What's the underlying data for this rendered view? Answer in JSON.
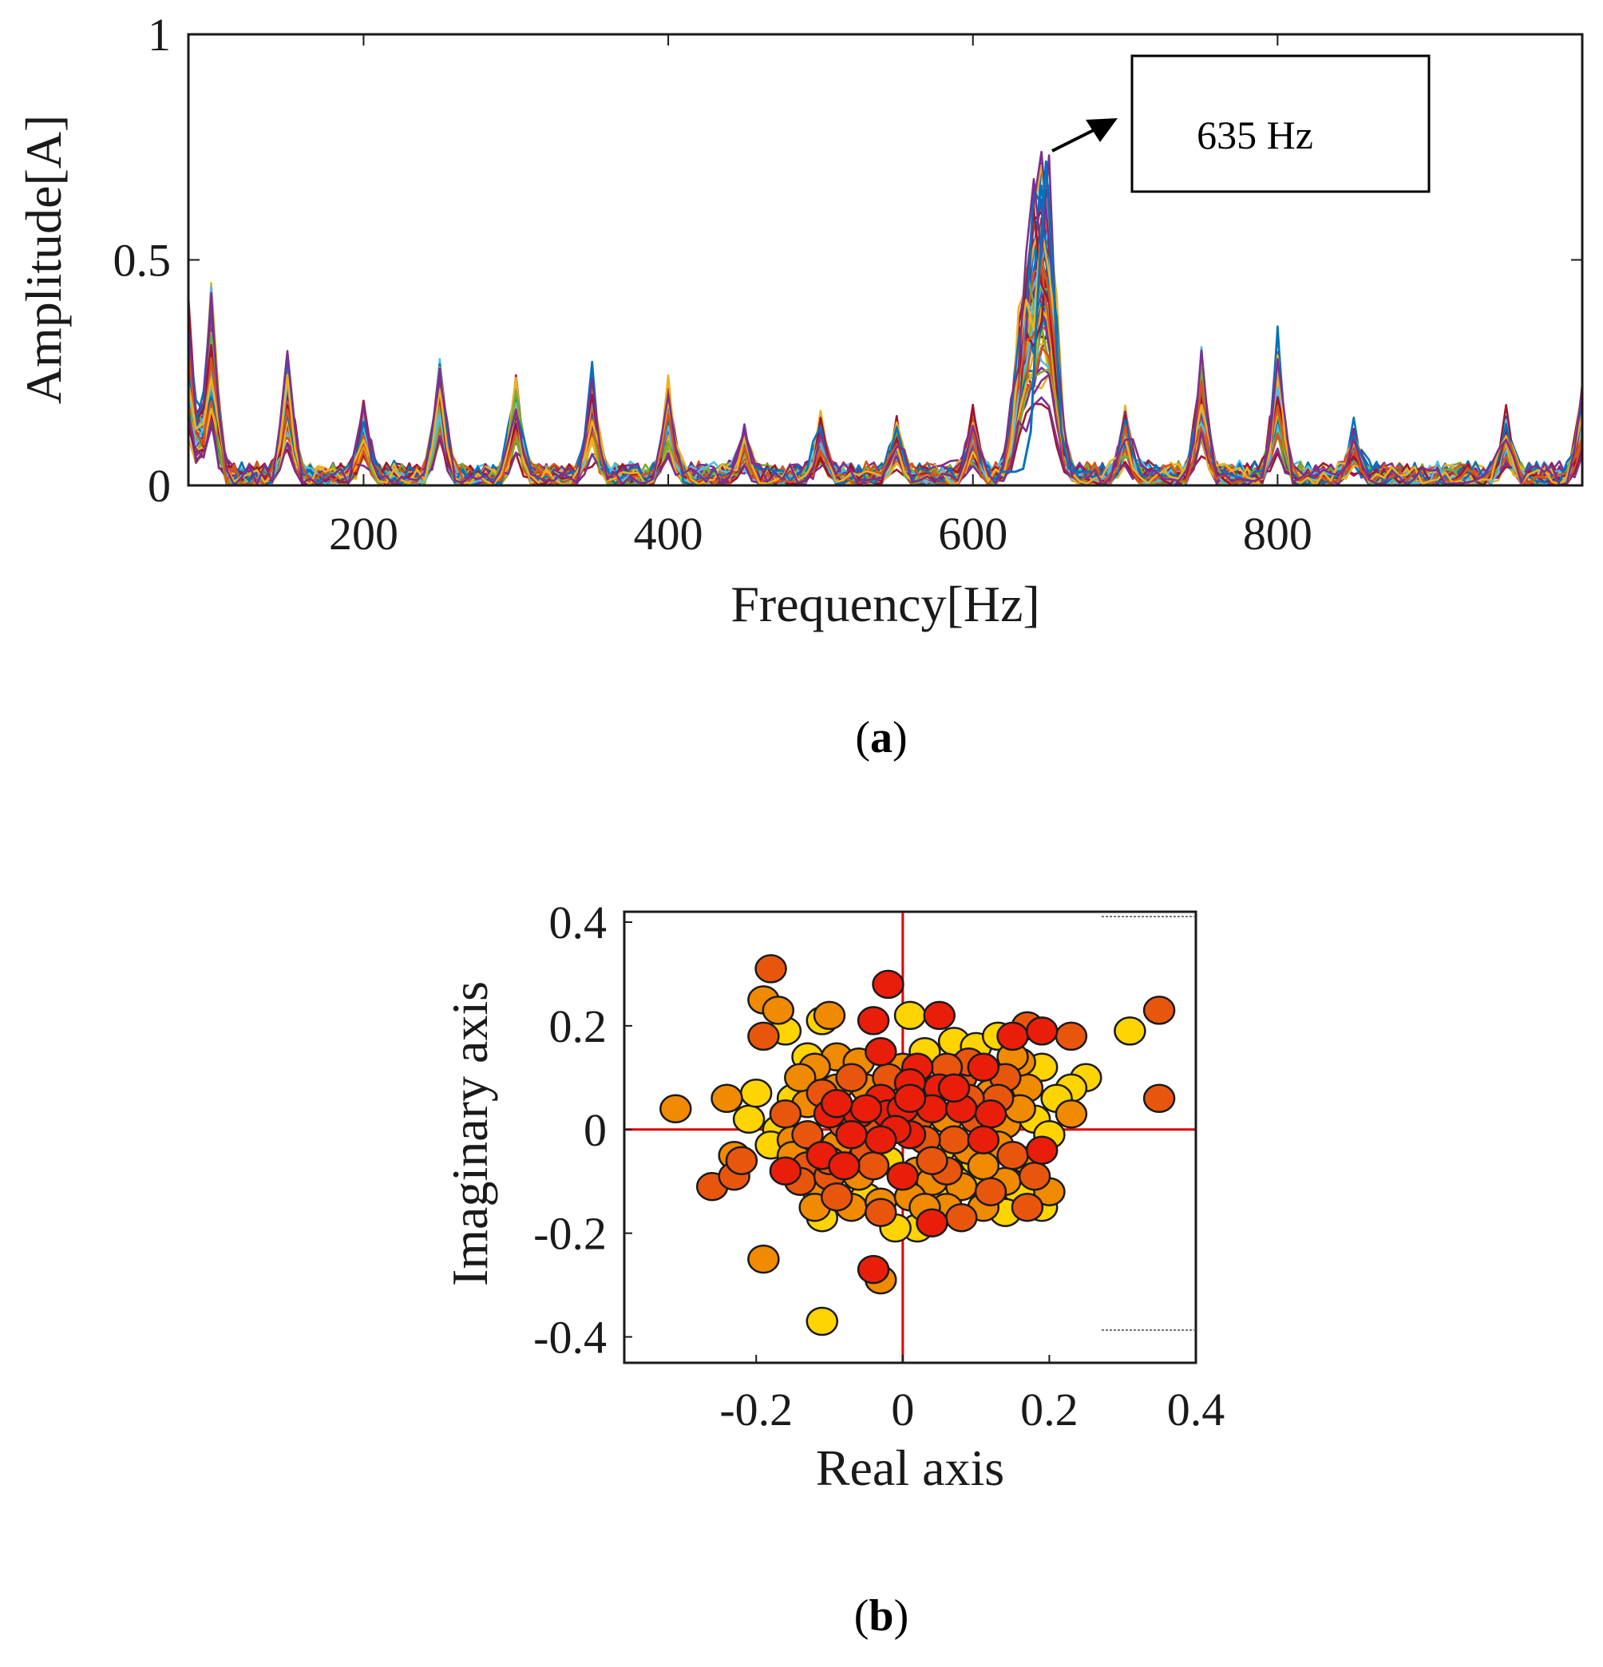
{
  "chart_data": [
    {
      "id": "a",
      "type": "line",
      "panel_label_open": "(",
      "panel_label": "a",
      "panel_label_close": ")",
      "title": "",
      "xlabel": "Frequency[Hz]",
      "ylabel": "Amplitude[A]",
      "xlim": [
        85,
        1000
      ],
      "ylim": [
        0,
        1
      ],
      "xticks": [
        200,
        400,
        600,
        800
      ],
      "yticks": [
        0,
        0.5,
        1
      ],
      "ytick_labels": [
        "0",
        "0.5",
        "1"
      ],
      "grid": false,
      "annotation": {
        "text": "635 Hz",
        "points_to": [
          648,
          0.72
        ]
      },
      "series_count_approx": 60,
      "baseline_noise": 0.04,
      "peaks": [
        {
          "x": 85,
          "amplitude": 0.45
        },
        {
          "x": 100,
          "amplitude": 0.51
        },
        {
          "x": 150,
          "amplitude": 0.31
        },
        {
          "x": 200,
          "amplitude": 0.18
        },
        {
          "x": 250,
          "amplitude": 0.31
        },
        {
          "x": 300,
          "amplitude": 0.26
        },
        {
          "x": 350,
          "amplitude": 0.25
        },
        {
          "x": 400,
          "amplitude": 0.21
        },
        {
          "x": 450,
          "amplitude": 0.11
        },
        {
          "x": 500,
          "amplitude": 0.14
        },
        {
          "x": 550,
          "amplitude": 0.14
        },
        {
          "x": 600,
          "amplitude": 0.16
        },
        {
          "x": 635,
          "amplitude": 0.5
        },
        {
          "x": 648,
          "amplitude": 0.72
        },
        {
          "x": 700,
          "amplitude": 0.15
        },
        {
          "x": 750,
          "amplitude": 0.31
        },
        {
          "x": 800,
          "amplitude": 0.34
        },
        {
          "x": 850,
          "amplitude": 0.11
        },
        {
          "x": 950,
          "amplitude": 0.15
        },
        {
          "x": 1000,
          "amplitude": 0.24
        }
      ],
      "colors": [
        "#0072BD",
        "#D95319",
        "#EDB120",
        "#7E2F8E",
        "#77AC30",
        "#4DBEEE",
        "#A2142F"
      ]
    },
    {
      "id": "b",
      "type": "scatter",
      "panel_label_open": "(",
      "panel_label": "b",
      "panel_label_close": ")",
      "title": "",
      "xlabel": "Real axis",
      "ylabel": "Imaginary axis",
      "xlim": [
        -0.38,
        0.4
      ],
      "ylim": [
        -0.45,
        0.42
      ],
      "xticks": [
        -0.2,
        0,
        0.2,
        0.4
      ],
      "xtick_labels": [
        "-0.2",
        "0",
        "0.2",
        "0.4"
      ],
      "yticks": [
        0.4,
        0.2,
        0,
        -0.2,
        -0.4
      ],
      "ytick_labels": [
        "0.4",
        "0.2",
        "0",
        "-0.2",
        "-0.4"
      ],
      "grid": false,
      "reference_lines": {
        "x": 0,
        "y": 0,
        "color": "#e00000"
      },
      "colors": {
        "yellow": "#FFD400",
        "orange": "#F08A00",
        "dark_orange": "#E8560E",
        "red": "#E81E0A"
      },
      "points": [
        [
          -0.31,
          0.04,
          "orange"
        ],
        [
          -0.24,
          0.06,
          "orange"
        ],
        [
          -0.26,
          -0.11,
          "dark_orange"
        ],
        [
          -0.23,
          -0.09,
          "dark_orange"
        ],
        [
          -0.22,
          -0.06,
          "dark_orange"
        ],
        [
          -0.23,
          -0.05,
          "orange"
        ],
        [
          -0.21,
          0.02,
          "yellow"
        ],
        [
          -0.2,
          0.07,
          "yellow"
        ],
        [
          -0.18,
          0.31,
          "dark_orange"
        ],
        [
          -0.19,
          0.25,
          "orange"
        ],
        [
          -0.17,
          0.23,
          "orange"
        ],
        [
          -0.19,
          0.18,
          "dark_orange"
        ],
        [
          -0.16,
          0.19,
          "yellow"
        ],
        [
          -0.11,
          0.21,
          "yellow"
        ],
        [
          -0.1,
          0.22,
          "orange"
        ],
        [
          -0.04,
          0.21,
          "red"
        ],
        [
          -0.02,
          0.28,
          "red"
        ],
        [
          0.01,
          0.22,
          "yellow"
        ],
        [
          0.05,
          0.22,
          "red"
        ],
        [
          -0.13,
          0.14,
          "yellow"
        ],
        [
          -0.09,
          0.14,
          "orange"
        ],
        [
          -0.06,
          0.13,
          "orange"
        ],
        [
          -0.03,
          0.15,
          "red"
        ],
        [
          0,
          0.12,
          "orange"
        ],
        [
          0.02,
          0.12,
          "red"
        ],
        [
          0.07,
          0.17,
          "yellow"
        ],
        [
          0.1,
          0.16,
          "yellow"
        ],
        [
          0.13,
          0.18,
          "yellow"
        ],
        [
          0.15,
          0.18,
          "red"
        ],
        [
          0.17,
          0.2,
          "dark_orange"
        ],
        [
          0.19,
          0.19,
          "red"
        ],
        [
          0.23,
          0.18,
          "dark_orange"
        ],
        [
          0.31,
          0.19,
          "yellow"
        ],
        [
          0.35,
          0.23,
          "dark_orange"
        ],
        [
          0.35,
          0.06,
          "dark_orange"
        ],
        [
          0.25,
          0.1,
          "yellow"
        ],
        [
          0.23,
          0.08,
          "yellow"
        ],
        [
          0.21,
          0.06,
          "yellow"
        ],
        [
          0.23,
          0.03,
          "orange"
        ],
        [
          0.17,
          0.08,
          "orange"
        ],
        [
          0.14,
          0.1,
          "dark_orange"
        ],
        [
          0.11,
          0.12,
          "red"
        ],
        [
          0.08,
          0.1,
          "dark_orange"
        ],
        [
          0.05,
          0.08,
          "red"
        ],
        [
          0.03,
          0.06,
          "dark_orange"
        ],
        [
          0.01,
          0.09,
          "red"
        ],
        [
          -0.01,
          0.07,
          "dark_orange"
        ],
        [
          -0.03,
          0.06,
          "red"
        ],
        [
          -0.05,
          0.08,
          "orange"
        ],
        [
          -0.07,
          0.1,
          "dark_orange"
        ],
        [
          -0.09,
          0.08,
          "orange"
        ],
        [
          -0.11,
          0.07,
          "dark_orange"
        ],
        [
          -0.13,
          0.05,
          "orange"
        ],
        [
          -0.15,
          0.06,
          "yellow"
        ],
        [
          -0.16,
          0.03,
          "dark_orange"
        ],
        [
          -0.17,
          0,
          "yellow"
        ],
        [
          -0.18,
          -0.03,
          "yellow"
        ],
        [
          -0.15,
          -0.02,
          "orange"
        ],
        [
          -0.13,
          -0.01,
          "dark_orange"
        ],
        [
          -0.1,
          0.03,
          "red"
        ],
        [
          -0.08,
          0.01,
          "dark_orange"
        ],
        [
          -0.06,
          0.03,
          "red"
        ],
        [
          -0.04,
          0.01,
          "dark_orange"
        ],
        [
          -0.02,
          0.03,
          "red"
        ],
        [
          0,
          0.04,
          "red"
        ],
        [
          0.02,
          0.02,
          "dark_orange"
        ],
        [
          0.04,
          0.04,
          "red"
        ],
        [
          0.06,
          0.02,
          "orange"
        ],
        [
          0.08,
          0.04,
          "red"
        ],
        [
          0.1,
          0.02,
          "dark_orange"
        ],
        [
          0.12,
          0.03,
          "red"
        ],
        [
          0.14,
          0.01,
          "orange"
        ],
        [
          0.16,
          0.04,
          "orange"
        ],
        [
          0.18,
          0.02,
          "yellow"
        ],
        [
          0.2,
          -0.01,
          "yellow"
        ],
        [
          0.19,
          -0.04,
          "red"
        ],
        [
          0.17,
          -0.06,
          "orange"
        ],
        [
          0.15,
          -0.05,
          "dark_orange"
        ],
        [
          0.13,
          -0.03,
          "orange"
        ],
        [
          0.11,
          -0.02,
          "red"
        ],
        [
          0.09,
          -0.04,
          "orange"
        ],
        [
          0.07,
          -0.02,
          "dark_orange"
        ],
        [
          0.05,
          -0.04,
          "yellow"
        ],
        [
          0.03,
          -0.02,
          "dark_orange"
        ],
        [
          0.01,
          -0.01,
          "red"
        ],
        [
          -0.01,
          0,
          "red"
        ],
        [
          -0.03,
          -0.02,
          "red"
        ],
        [
          -0.05,
          -0.04,
          "dark_orange"
        ],
        [
          -0.07,
          -0.01,
          "red"
        ],
        [
          -0.09,
          -0.03,
          "orange"
        ],
        [
          -0.11,
          -0.05,
          "red"
        ],
        [
          -0.13,
          -0.07,
          "dark_orange"
        ],
        [
          -0.15,
          -0.05,
          "orange"
        ],
        [
          -0.16,
          -0.08,
          "red"
        ],
        [
          -0.14,
          -0.1,
          "dark_orange"
        ],
        [
          -0.12,
          -0.11,
          "orange"
        ],
        [
          -0.1,
          -0.09,
          "dark_orange"
        ],
        [
          -0.08,
          -0.07,
          "red"
        ],
        [
          -0.06,
          -0.09,
          "orange"
        ],
        [
          -0.04,
          -0.07,
          "dark_orange"
        ],
        [
          -0.02,
          -0.06,
          "yellow"
        ],
        [
          0,
          -0.09,
          "red"
        ],
        [
          0.02,
          -0.08,
          "orange"
        ],
        [
          0.04,
          -0.1,
          "orange"
        ],
        [
          0.06,
          -0.08,
          "dark_orange"
        ],
        [
          0.08,
          -0.11,
          "orange"
        ],
        [
          0.1,
          -0.09,
          "yellow"
        ],
        [
          0.12,
          -0.12,
          "dark_orange"
        ],
        [
          0.14,
          -0.1,
          "orange"
        ],
        [
          0.16,
          -0.12,
          "yellow"
        ],
        [
          0.18,
          -0.09,
          "dark_orange"
        ],
        [
          0.2,
          -0.12,
          "orange"
        ],
        [
          0.19,
          -0.15,
          "yellow"
        ],
        [
          0.17,
          -0.15,
          "dark_orange"
        ],
        [
          0.14,
          -0.16,
          "yellow"
        ],
        [
          0.11,
          -0.15,
          "orange"
        ],
        [
          0.08,
          -0.17,
          "dark_orange"
        ],
        [
          0.06,
          -0.15,
          "orange"
        ],
        [
          0.04,
          -0.18,
          "red"
        ],
        [
          0.02,
          -0.19,
          "yellow"
        ],
        [
          -0.01,
          -0.19,
          "yellow"
        ],
        [
          -0.03,
          -0.16,
          "dark_orange"
        ],
        [
          -0.05,
          -0.13,
          "yellow"
        ],
        [
          -0.07,
          -0.15,
          "orange"
        ],
        [
          -0.09,
          -0.13,
          "dark_orange"
        ],
        [
          -0.11,
          -0.17,
          "yellow"
        ],
        [
          -0.12,
          -0.15,
          "orange"
        ],
        [
          -0.03,
          -0.14,
          "orange"
        ],
        [
          0.01,
          -0.13,
          "orange"
        ],
        [
          0.03,
          -0.15,
          "orange"
        ],
        [
          0.06,
          -0.13,
          "yellow"
        ],
        [
          0.1,
          -0.06,
          "yellow"
        ],
        [
          0.12,
          0.07,
          "orange"
        ],
        [
          0.09,
          0.13,
          "dark_orange"
        ],
        [
          0.03,
          0.15,
          "yellow"
        ],
        [
          -0.02,
          0.1,
          "dark_orange"
        ],
        [
          0.06,
          0.12,
          "dark_orange"
        ],
        [
          -0.12,
          0.12,
          "orange"
        ],
        [
          0.16,
          0.13,
          "orange"
        ],
        [
          0.19,
          0.12,
          "yellow"
        ],
        [
          0.15,
          0.14,
          "orange"
        ],
        [
          0.13,
          0.06,
          "dark_orange"
        ],
        [
          0.04,
          -0.06,
          "dark_orange"
        ],
        [
          -0.14,
          0.1,
          "orange"
        ],
        [
          -0.19,
          -0.25,
          "orange"
        ],
        [
          -0.04,
          -0.27,
          "red"
        ],
        [
          -0.03,
          -0.29,
          "orange"
        ],
        [
          -0.11,
          -0.37,
          "yellow"
        ],
        [
          -0.01,
          0.01,
          "dark_orange"
        ],
        [
          0.01,
          0.06,
          "red"
        ],
        [
          -0.05,
          0.04,
          "red"
        ],
        [
          0.07,
          0.08,
          "red"
        ],
        [
          -0.09,
          0.05,
          "red"
        ],
        [
          0.09,
          0.06,
          "dark_orange"
        ],
        [
          -0.1,
          -0.06,
          "dark_orange"
        ],
        [
          0.11,
          -0.07,
          "orange"
        ]
      ]
    }
  ]
}
